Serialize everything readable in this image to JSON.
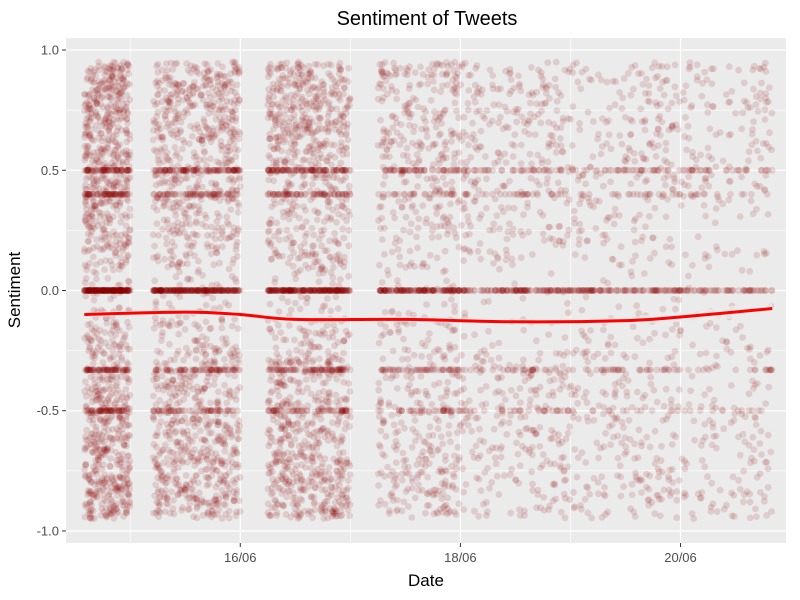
{
  "chart_data": {
    "type": "scatter",
    "title": "Sentiment of Tweets",
    "xlabel": "Date",
    "ylabel": "Sentiment",
    "ylim": [
      -1.05,
      1.05
    ],
    "xlim": [
      "2016-06-14T10:00",
      "2016-06-20T23:00"
    ],
    "y_ticks": [
      {
        "value": -1.0,
        "label": "-1.0"
      },
      {
        "value": -0.5,
        "label": "-0.5"
      },
      {
        "value": 0.0,
        "label": "0.0"
      },
      {
        "value": 0.5,
        "label": "0.5"
      },
      {
        "value": 1.0,
        "label": "1.0"
      }
    ],
    "x_ticks": [
      {
        "value": "2016-06-16T00:00",
        "label": "16/06"
      },
      {
        "value": "2016-06-18T00:00",
        "label": "18/06"
      },
      {
        "value": "2016-06-20T00:00",
        "label": "20/06"
      }
    ],
    "grid": true,
    "point_color": "#8B0000",
    "point_alpha": 0.13,
    "series": [
      {
        "type": "scatter",
        "density_by_day": [
          {
            "start": "2016-06-14T14:00",
            "end": "2016-06-15T00:00",
            "points": 1500
          },
          {
            "start": "2016-06-15T05:00",
            "end": "2016-06-16T00:00",
            "points": 1700
          },
          {
            "start": "2016-06-16T06:00",
            "end": "2016-06-17T00:00",
            "points": 1700
          },
          {
            "start": "2016-06-17T06:00",
            "end": "2016-06-18T00:00",
            "points": 900
          },
          {
            "start": "2016-06-18T00:00",
            "end": "2016-06-19T00:00",
            "points": 750
          },
          {
            "start": "2016-06-19T00:00",
            "end": "2016-06-20T00:00",
            "points": 650
          },
          {
            "start": "2016-06-20T00:00",
            "end": "2016-06-20T20:00",
            "points": 420
          }
        ],
        "concentration_levels": [
          0.0,
          0.5,
          -0.33,
          0.4,
          -0.5
        ]
      },
      {
        "type": "line",
        "smooth": true,
        "color": "#FF0000",
        "band_color": "#EBEBEB",
        "x": [
          "2016-06-14T14:00",
          "2016-06-15T12:00",
          "2016-06-16T00:00",
          "2016-06-16T12:00",
          "2016-06-17T12:00",
          "2016-06-18T12:00",
          "2016-06-19T12:00",
          "2016-06-20T00:00",
          "2016-06-20T20:00"
        ],
        "y": [
          -0.1,
          -0.09,
          -0.1,
          -0.12,
          -0.12,
          -0.13,
          -0.125,
          -0.11,
          -0.075
        ],
        "band_low": [
          -0.11,
          -0.1,
          -0.11,
          -0.13,
          -0.13,
          -0.14,
          -0.14,
          -0.13,
          -0.105
        ],
        "band_high": [
          -0.09,
          -0.08,
          -0.09,
          -0.11,
          -0.11,
          -0.12,
          -0.11,
          -0.09,
          -0.045
        ]
      }
    ]
  }
}
